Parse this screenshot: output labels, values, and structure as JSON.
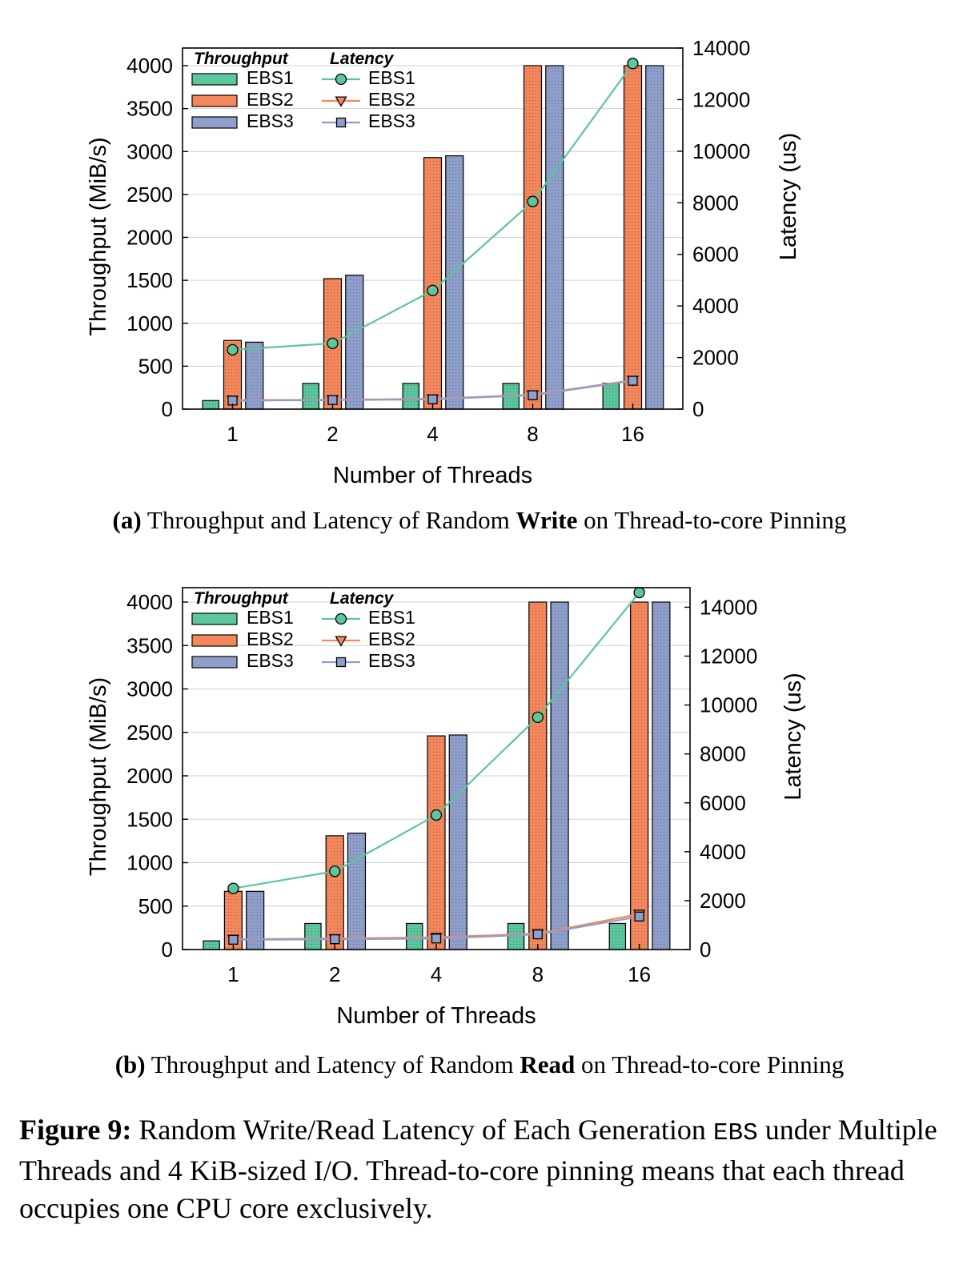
{
  "chart_data": [
    {
      "type": "bar",
      "panel": "a",
      "categories": [
        "1",
        "2",
        "4",
        "8",
        "16"
      ],
      "xlabel": "Number of Threads",
      "ylabel": "Throughput (MiB/s)",
      "ylim": [
        0,
        4000
      ],
      "yticks": [
        "0",
        "500",
        "1000",
        "1500",
        "2000",
        "2500",
        "3000",
        "3500",
        "4000"
      ],
      "y2label": "Latency (us)",
      "y2lim": [
        0,
        14000
      ],
      "y2ticks": [
        "0",
        "2000",
        "4000",
        "6000",
        "8000",
        "10000",
        "12000",
        "14000"
      ],
      "legend_throughput_title": "Throughput",
      "legend_latency_title": "Latency",
      "series": [
        {
          "name": "EBS1",
          "values": [
            100,
            300,
            300,
            300,
            300
          ]
        },
        {
          "name": "EBS2",
          "values": [
            800,
            1520,
            2930,
            4000,
            4000
          ]
        },
        {
          "name": "EBS3",
          "values": [
            780,
            1560,
            2950,
            4000,
            4000
          ]
        }
      ],
      "latency_series": [
        {
          "name": "EBS1",
          "values": [
            2300,
            2550,
            4600,
            8050,
            13400
          ]
        },
        {
          "name": "EBS2",
          "values": [
            350,
            360,
            400,
            560,
            1120
          ]
        },
        {
          "name": "EBS3",
          "values": [
            330,
            350,
            380,
            540,
            1100
          ]
        }
      ],
      "caption": {
        "label": "(a)",
        "before": " Throughput and Latency of Random ",
        "bold": "Write",
        "after": " on Thread-to-core Pinning"
      }
    },
    {
      "type": "bar",
      "panel": "b",
      "categories": [
        "1",
        "2",
        "4",
        "8",
        "16"
      ],
      "xlabel": "Number of Threads",
      "ylabel": "Throughput (MiB/s)",
      "ylim": [
        0,
        4000
      ],
      "yticks": [
        "0",
        "500",
        "1000",
        "1500",
        "2000",
        "2500",
        "3000",
        "3500",
        "4000"
      ],
      "y2label": "Latency (us)",
      "y2lim": [
        0,
        14800
      ],
      "y2ticks": [
        "0",
        "2000",
        "4000",
        "6000",
        "8000",
        "10000",
        "12000",
        "14000"
      ],
      "legend_throughput_title": "Throughput",
      "legend_latency_title": "Latency",
      "series": [
        {
          "name": "EBS1",
          "values": [
            100,
            300,
            300,
            300,
            300
          ]
        },
        {
          "name": "EBS2",
          "values": [
            670,
            1310,
            2460,
            4000,
            4000
          ]
        },
        {
          "name": "EBS3",
          "values": [
            670,
            1340,
            2470,
            4000,
            4000
          ]
        }
      ],
      "latency_series": [
        {
          "name": "EBS1",
          "values": [
            2500,
            3200,
            5500,
            9500,
            14600
          ]
        },
        {
          "name": "EBS2",
          "values": [
            420,
            450,
            500,
            650,
            1450
          ]
        },
        {
          "name": "EBS3",
          "values": [
            400,
            420,
            450,
            620,
            1350
          ]
        }
      ],
      "caption": {
        "label": "(b)",
        "before": " Throughput and Latency of Random ",
        "bold": "Read",
        "after": " on Thread-to-core Pinning"
      }
    }
  ],
  "figure_caption": {
    "label": "Figure 9:",
    "text1": " Random Write/Read Latency of Each Generation ",
    "code": "EBS",
    "text2": " under Multiple Threads and 4 KiB-sized I/O. Thread-to-core pinning means that each thread occupies one CPU core exclusively."
  },
  "colors": {
    "EBS1": "#5cc69c",
    "EBS2": "#f4875c",
    "EBS3": "#8f9fcb",
    "line_EBS1": "#5cc69c",
    "line_EBS2": "#f4875c",
    "line_EBS3": "#8f9fcb",
    "grid": "#d0d0d0"
  }
}
